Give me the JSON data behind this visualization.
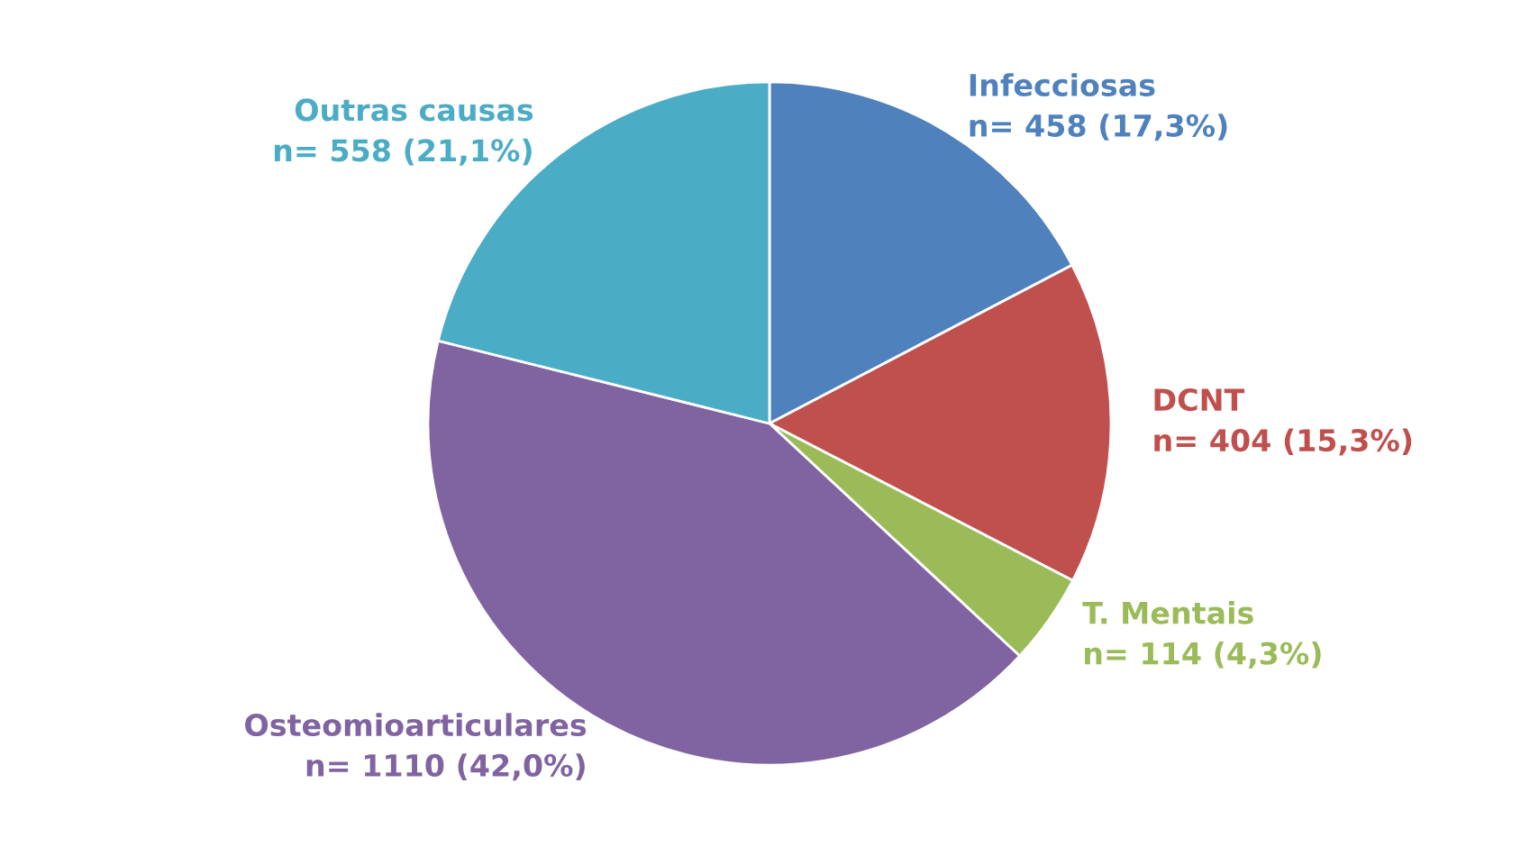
{
  "chart_data": {
    "type": "pie",
    "categories": [
      "Infecciosas",
      "DCNT",
      "T. Mentais",
      "Osteomioarticulares",
      "Outras causas"
    ],
    "values": [
      458,
      404,
      114,
      1110,
      558
    ],
    "colors": [
      "#4f81bd",
      "#c0504d",
      "#9bbb59",
      "#8064a2",
      "#4bacc6"
    ],
    "value_labels": [
      "n= 458 (17,3%)",
      "n= 404 (15,3%)",
      "n= 114 (4,3%)",
      "n= 1110 (42,0%)",
      "n= 558 (21,1%)"
    ]
  }
}
